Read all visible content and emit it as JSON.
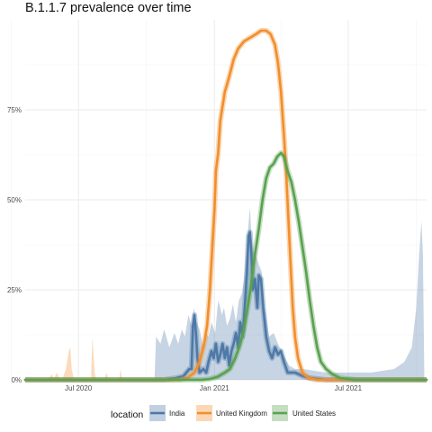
{
  "chart_data": {
    "type": "line",
    "title": "B.1.1.7 prevalence over time",
    "xlabel": "",
    "ylabel": "",
    "x_ticks": [
      "Jul 2020",
      "Jan 2021",
      "Jul 2021"
    ],
    "y_ticks": [
      "0%",
      "25%",
      "50%",
      "75%"
    ],
    "ylim": [
      0,
      1
    ],
    "grid": true,
    "legend": {
      "title": "location",
      "position": "bottom"
    },
    "series": [
      {
        "name": "India",
        "color": "#4e79a7",
        "points": [
          [
            "2020-04-20",
            0.0
          ],
          [
            "2020-09-15",
            0.0
          ],
          [
            "2020-10-25",
            0.0
          ],
          [
            "2020-11-10",
            0.005
          ],
          [
            "2020-11-20",
            0.01
          ],
          [
            "2020-11-28",
            0.03
          ],
          [
            "2020-12-01",
            0.03
          ],
          [
            "2020-12-03",
            0.15
          ],
          [
            "2020-12-05",
            0.18
          ],
          [
            "2020-12-07",
            0.13
          ],
          [
            "2020-12-09",
            0.06
          ],
          [
            "2020-12-12",
            0.02
          ],
          [
            "2020-12-17",
            0.03
          ],
          [
            "2020-12-21",
            0.02
          ],
          [
            "2020-12-24",
            0.05
          ],
          [
            "2020-12-28",
            0.08
          ],
          [
            "2020-12-31",
            0.06
          ],
          [
            "2021-01-03",
            0.1
          ],
          [
            "2021-01-06",
            0.05
          ],
          [
            "2021-01-09",
            0.07
          ],
          [
            "2021-01-12",
            0.1
          ],
          [
            "2021-01-15",
            0.06
          ],
          [
            "2021-01-18",
            0.09
          ],
          [
            "2021-01-21",
            0.04
          ],
          [
            "2021-01-24",
            0.08
          ],
          [
            "2021-01-27",
            0.1
          ],
          [
            "2021-01-30",
            0.13
          ],
          [
            "2021-02-02",
            0.09
          ],
          [
            "2021-02-05",
            0.16
          ],
          [
            "2021-02-08",
            0.12
          ],
          [
            "2021-02-11",
            0.2
          ],
          [
            "2021-02-14",
            0.3
          ],
          [
            "2021-02-16",
            0.4
          ],
          [
            "2021-02-18",
            0.41
          ],
          [
            "2021-02-20",
            0.35
          ],
          [
            "2021-02-22",
            0.25
          ],
          [
            "2021-02-25",
            0.28
          ],
          [
            "2021-02-28",
            0.2
          ],
          [
            "2021-03-02",
            0.29
          ],
          [
            "2021-03-05",
            0.28
          ],
          [
            "2021-03-08",
            0.2
          ],
          [
            "2021-03-12",
            0.12
          ],
          [
            "2021-03-16",
            0.08
          ],
          [
            "2021-03-20",
            0.06
          ],
          [
            "2021-03-24",
            0.09
          ],
          [
            "2021-03-28",
            0.07
          ],
          [
            "2021-04-01",
            0.08
          ],
          [
            "2021-04-05",
            0.05
          ],
          [
            "2021-04-10",
            0.02
          ],
          [
            "2021-04-20",
            0.02
          ],
          [
            "2021-05-01",
            0.01
          ],
          [
            "2021-05-10",
            0.005
          ],
          [
            "2021-06-01",
            0.0
          ],
          [
            "2021-10-15",
            0.0
          ]
        ],
        "band_upper": [
          [
            "2020-10-12",
            0.0
          ],
          [
            "2020-10-14",
            0.12
          ],
          [
            "2020-10-20",
            0.1
          ],
          [
            "2020-10-25",
            0.14
          ],
          [
            "2020-11-01",
            0.09
          ],
          [
            "2020-11-08",
            0.13
          ],
          [
            "2020-11-13",
            0.1
          ],
          [
            "2020-11-18",
            0.14
          ],
          [
            "2020-11-22",
            0.12
          ],
          [
            "2020-11-27",
            0.18
          ],
          [
            "2020-12-01",
            0.15
          ],
          [
            "2020-12-04",
            0.2
          ],
          [
            "2020-12-08",
            0.16
          ],
          [
            "2020-12-12",
            0.14
          ],
          [
            "2020-12-17",
            0.09
          ],
          [
            "2020-12-20",
            0.13
          ],
          [
            "2020-12-24",
            0.12
          ],
          [
            "2020-12-28",
            0.16
          ],
          [
            "2021-01-02",
            0.13
          ],
          [
            "2021-01-06",
            0.22
          ],
          [
            "2021-01-09",
            0.2
          ],
          [
            "2021-01-11",
            0.18
          ],
          [
            "2021-01-14",
            0.2
          ],
          [
            "2021-01-18",
            0.15
          ],
          [
            "2021-01-22",
            0.17
          ],
          [
            "2021-01-26",
            0.21
          ],
          [
            "2021-01-30",
            0.16
          ],
          [
            "2021-02-03",
            0.22
          ],
          [
            "2021-02-07",
            0.24
          ],
          [
            "2021-02-10",
            0.28
          ],
          [
            "2021-02-14",
            0.38
          ],
          [
            "2021-02-18",
            0.48
          ],
          [
            "2021-02-20",
            0.4
          ],
          [
            "2021-02-23",
            0.35
          ],
          [
            "2021-02-27",
            0.34
          ],
          [
            "2021-03-02",
            0.32
          ],
          [
            "2021-03-06",
            0.3
          ],
          [
            "2021-03-10",
            0.2
          ],
          [
            "2021-03-16",
            0.12
          ],
          [
            "2021-03-22",
            0.13
          ],
          [
            "2021-03-28",
            0.1
          ],
          [
            "2021-04-04",
            0.07
          ],
          [
            "2021-04-12",
            0.04
          ],
          [
            "2021-04-20",
            0.03
          ],
          [
            "2021-05-01",
            0.03
          ],
          [
            "2021-06-01",
            0.02
          ],
          [
            "2021-07-01",
            0.02
          ],
          [
            "2021-08-01",
            0.02
          ],
          [
            "2021-09-01",
            0.03
          ],
          [
            "2021-09-15",
            0.05
          ],
          [
            "2021-09-25",
            0.09
          ],
          [
            "2021-10-01",
            0.2
          ],
          [
            "2021-10-05",
            0.35
          ],
          [
            "2021-10-08",
            0.44
          ],
          [
            "2021-10-10",
            0.35
          ],
          [
            "2021-10-12",
            0.0
          ]
        ]
      },
      {
        "name": "United Kingdom",
        "color": "#f28e2b",
        "points": [
          [
            "2020-04-20",
            0.0
          ],
          [
            "2020-11-15",
            0.0
          ],
          [
            "2020-11-25",
            0.005
          ],
          [
            "2020-12-05",
            0.02
          ],
          [
            "2020-12-12",
            0.05
          ],
          [
            "2020-12-18",
            0.1
          ],
          [
            "2020-12-22",
            0.15
          ],
          [
            "2020-12-26",
            0.25
          ],
          [
            "2020-12-30",
            0.4
          ],
          [
            "2021-01-01",
            0.47
          ],
          [
            "2021-01-03",
            0.58
          ],
          [
            "2021-01-06",
            0.63
          ],
          [
            "2021-01-09",
            0.72
          ],
          [
            "2021-01-12",
            0.76
          ],
          [
            "2021-01-15",
            0.8
          ],
          [
            "2021-01-18",
            0.82
          ],
          [
            "2021-01-22",
            0.85
          ],
          [
            "2021-01-27",
            0.89
          ],
          [
            "2021-02-02",
            0.92
          ],
          [
            "2021-02-10",
            0.94
          ],
          [
            "2021-02-18",
            0.95
          ],
          [
            "2021-02-26",
            0.96
          ],
          [
            "2021-03-05",
            0.97
          ],
          [
            "2021-03-12",
            0.97
          ],
          [
            "2021-03-18",
            0.96
          ],
          [
            "2021-03-24",
            0.93
          ],
          [
            "2021-03-28",
            0.88
          ],
          [
            "2021-04-01",
            0.8
          ],
          [
            "2021-04-05",
            0.68
          ],
          [
            "2021-04-08",
            0.58
          ],
          [
            "2021-04-11",
            0.45
          ],
          [
            "2021-04-14",
            0.32
          ],
          [
            "2021-04-17",
            0.2
          ],
          [
            "2021-04-20",
            0.12
          ],
          [
            "2021-04-24",
            0.06
          ],
          [
            "2021-04-30",
            0.02
          ],
          [
            "2021-05-08",
            0.005
          ],
          [
            "2021-05-20",
            0.0
          ],
          [
            "2021-10-15",
            0.0
          ]
        ],
        "band_upper": [
          [
            "2020-04-20",
            0.0
          ],
          [
            "2020-05-20",
            0.0
          ],
          [
            "2020-05-26",
            0.015
          ],
          [
            "2020-05-29",
            0.005
          ],
          [
            "2020-06-02",
            0.02
          ],
          [
            "2020-06-05",
            0.005
          ],
          [
            "2020-06-09",
            0.0
          ],
          [
            "2020-06-14",
            0.03
          ],
          [
            "2020-06-18",
            0.08
          ],
          [
            "2020-06-20",
            0.09
          ],
          [
            "2020-06-22",
            0.03
          ],
          [
            "2020-06-25",
            0.0
          ],
          [
            "2020-07-18",
            0.0
          ],
          [
            "2020-07-20",
            0.12
          ],
          [
            "2020-07-23",
            0.02
          ],
          [
            "2020-07-25",
            0.0
          ],
          [
            "2020-08-05",
            0.0
          ],
          [
            "2020-08-08",
            0.02
          ],
          [
            "2020-08-11",
            0.0
          ],
          [
            "2020-08-25",
            0.0
          ],
          [
            "2020-08-27",
            0.03
          ],
          [
            "2020-08-29",
            0.0
          ],
          [
            "2021-10-15",
            0.0
          ]
        ]
      },
      {
        "name": "United States",
        "color": "#59a14f",
        "points": [
          [
            "2020-04-20",
            0.0
          ],
          [
            "2020-12-15",
            0.0
          ],
          [
            "2020-12-25",
            0.002
          ],
          [
            "2021-01-05",
            0.008
          ],
          [
            "2021-01-15",
            0.02
          ],
          [
            "2021-01-22",
            0.03
          ],
          [
            "2021-01-29",
            0.06
          ],
          [
            "2021-02-05",
            0.1
          ],
          [
            "2021-02-10",
            0.14
          ],
          [
            "2021-02-15",
            0.2
          ],
          [
            "2021-02-20",
            0.27
          ],
          [
            "2021-02-25",
            0.35
          ],
          [
            "2021-03-02",
            0.42
          ],
          [
            "2021-03-07",
            0.5
          ],
          [
            "2021-03-12",
            0.56
          ],
          [
            "2021-03-17",
            0.59
          ],
          [
            "2021-03-22",
            0.6
          ],
          [
            "2021-03-27",
            0.62
          ],
          [
            "2021-04-01",
            0.63
          ],
          [
            "2021-04-05",
            0.62
          ],
          [
            "2021-04-10",
            0.58
          ],
          [
            "2021-04-15",
            0.55
          ],
          [
            "2021-04-20",
            0.5
          ],
          [
            "2021-04-25",
            0.44
          ],
          [
            "2021-04-30",
            0.37
          ],
          [
            "2021-05-05",
            0.3
          ],
          [
            "2021-05-10",
            0.22
          ],
          [
            "2021-05-15",
            0.15
          ],
          [
            "2021-05-20",
            0.09
          ],
          [
            "2021-05-25",
            0.05
          ],
          [
            "2021-06-01",
            0.03
          ],
          [
            "2021-06-10",
            0.015
          ],
          [
            "2021-06-20",
            0.005
          ],
          [
            "2021-07-10",
            0.0
          ],
          [
            "2021-10-15",
            0.0
          ]
        ]
      }
    ]
  }
}
